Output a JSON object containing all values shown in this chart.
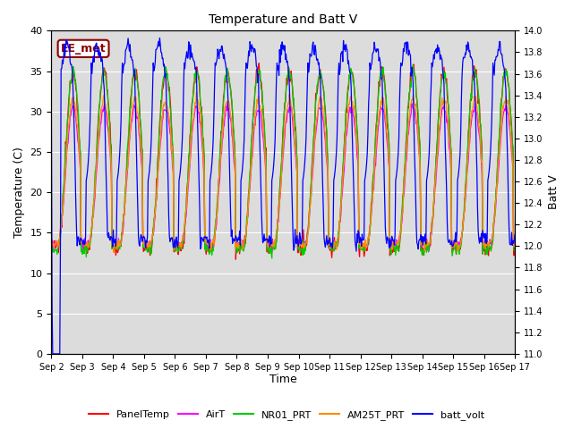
{
  "title": "Temperature and Batt V",
  "xlabel": "Time",
  "ylabel_left": "Temperature (C)",
  "ylabel_right": "Batt V",
  "ylim_left": [
    0,
    40
  ],
  "ylim_right": [
    11.0,
    14.0
  ],
  "xlim": [
    0,
    15
  ],
  "x_tick_labels": [
    "Sep 2",
    "Sep 3",
    "Sep 4",
    "Sep 5",
    "Sep 6",
    "Sep 7",
    "Sep 8",
    "Sep 9",
    "Sep 10",
    "Sep 11",
    "Sep 12",
    "Sep 13",
    "Sep 14",
    "Sep 15",
    "Sep 16",
    "Sep 17"
  ],
  "annotation_text": "EE_met",
  "annotation_color": "#8B0000",
  "bg_color": "#DCDCDC",
  "fig_color": "#FFFFFF",
  "series_colors": {
    "PanelTemp": "#FF0000",
    "AirT": "#FF00FF",
    "NR01_PRT": "#00CC00",
    "AM25T_PRT": "#FF8C00",
    "batt_volt": "#0000FF"
  },
  "legend_labels": [
    "PanelTemp",
    "AirT",
    "NR01_PRT",
    "AM25T_PRT",
    "batt_volt"
  ],
  "grid_color": "#FFFFFF",
  "left_yticks": [
    0,
    5,
    10,
    15,
    20,
    25,
    30,
    35,
    40
  ],
  "right_yticks": [
    11.0,
    11.2,
    11.4,
    11.6,
    11.8,
    12.0,
    12.2,
    12.4,
    12.6,
    12.8,
    13.0,
    13.2,
    13.4,
    13.6,
    13.8,
    14.0
  ]
}
